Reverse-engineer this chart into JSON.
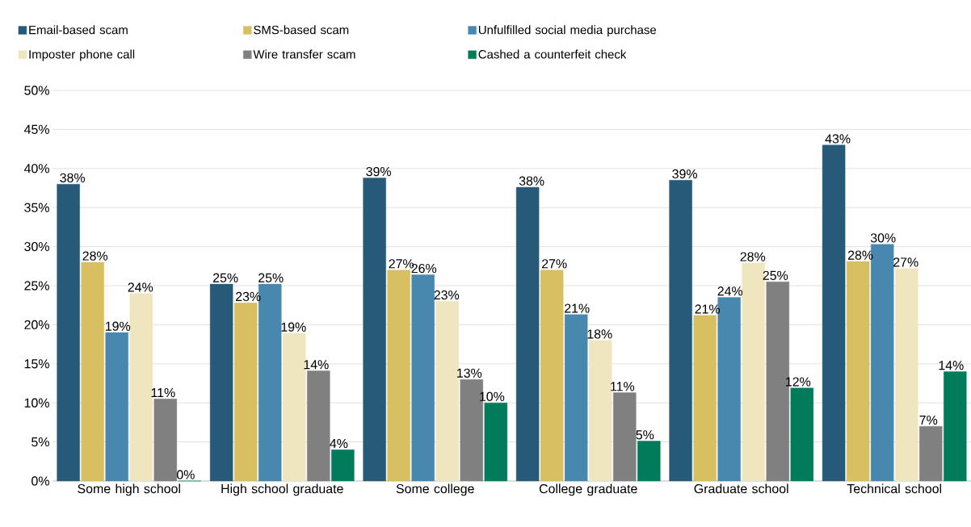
{
  "chart_data": {
    "type": "bar",
    "categories": [
      "Some high school",
      "High school graduate",
      "Some college",
      "College graduate",
      "Graduate school",
      "Technical school"
    ],
    "series": [
      {
        "name": "Email-based scam",
        "color": "#275a78",
        "values": [
          38.0,
          25.2,
          38.8,
          37.6,
          38.5,
          43.0
        ],
        "value_labels": [
          "38%",
          "25%",
          "39%",
          "38%",
          "39%",
          "43%"
        ]
      },
      {
        "name": "SMS-based scam",
        "color": "#d7bf62",
        "values": [
          28.0,
          22.8,
          27.0,
          27.0,
          21.2,
          28.1
        ],
        "value_labels": [
          "28%",
          "23%",
          "27%",
          "27%",
          "21%",
          "28%"
        ]
      },
      {
        "name": "Unfulfilled social media purchase",
        "color": "#4888ae",
        "values": [
          19.0,
          25.2,
          26.4,
          21.3,
          23.5,
          30.3
        ],
        "value_labels": [
          "19%",
          "25%",
          "26%",
          "21%",
          "24%",
          "30%"
        ]
      },
      {
        "name": "Imposter phone call",
        "color": "#efe5bf",
        "values": [
          24.0,
          18.9,
          23.0,
          18.0,
          27.9,
          27.2
        ],
        "value_labels": [
          "24%",
          "19%",
          "23%",
          "18%",
          "28%",
          "27%"
        ]
      },
      {
        "name": "Wire transfer scam",
        "color": "#808080",
        "values": [
          10.5,
          14.1,
          13.0,
          11.3,
          25.5,
          7.0
        ],
        "value_labels": [
          "11%",
          "14%",
          "13%",
          "11%",
          "25%",
          "7%"
        ]
      },
      {
        "name": "Cashed a counterfeit check",
        "color": "#027b5b",
        "values": [
          0,
          4.0,
          10.0,
          5.1,
          11.9,
          14.0
        ],
        "value_labels": [
          "0%",
          "4%",
          "10%",
          "5%",
          "12%",
          "14%"
        ]
      }
    ],
    "ylim": [
      0,
      50
    ],
    "yticks": [
      {
        "value": 0,
        "label": "0%"
      },
      {
        "value": 5,
        "label": "5%"
      },
      {
        "value": 10,
        "label": "10%"
      },
      {
        "value": 15,
        "label": "15%"
      },
      {
        "value": 20,
        "label": "20%"
      },
      {
        "value": 25,
        "label": "25%"
      },
      {
        "value": 30,
        "label": "30%"
      },
      {
        "value": 35,
        "label": "35%"
      },
      {
        "value": 40,
        "label": "40%"
      },
      {
        "value": 45,
        "label": "45%"
      },
      {
        "value": 50,
        "label": "50%"
      }
    ],
    "grid": "y",
    "legend": "top"
  }
}
